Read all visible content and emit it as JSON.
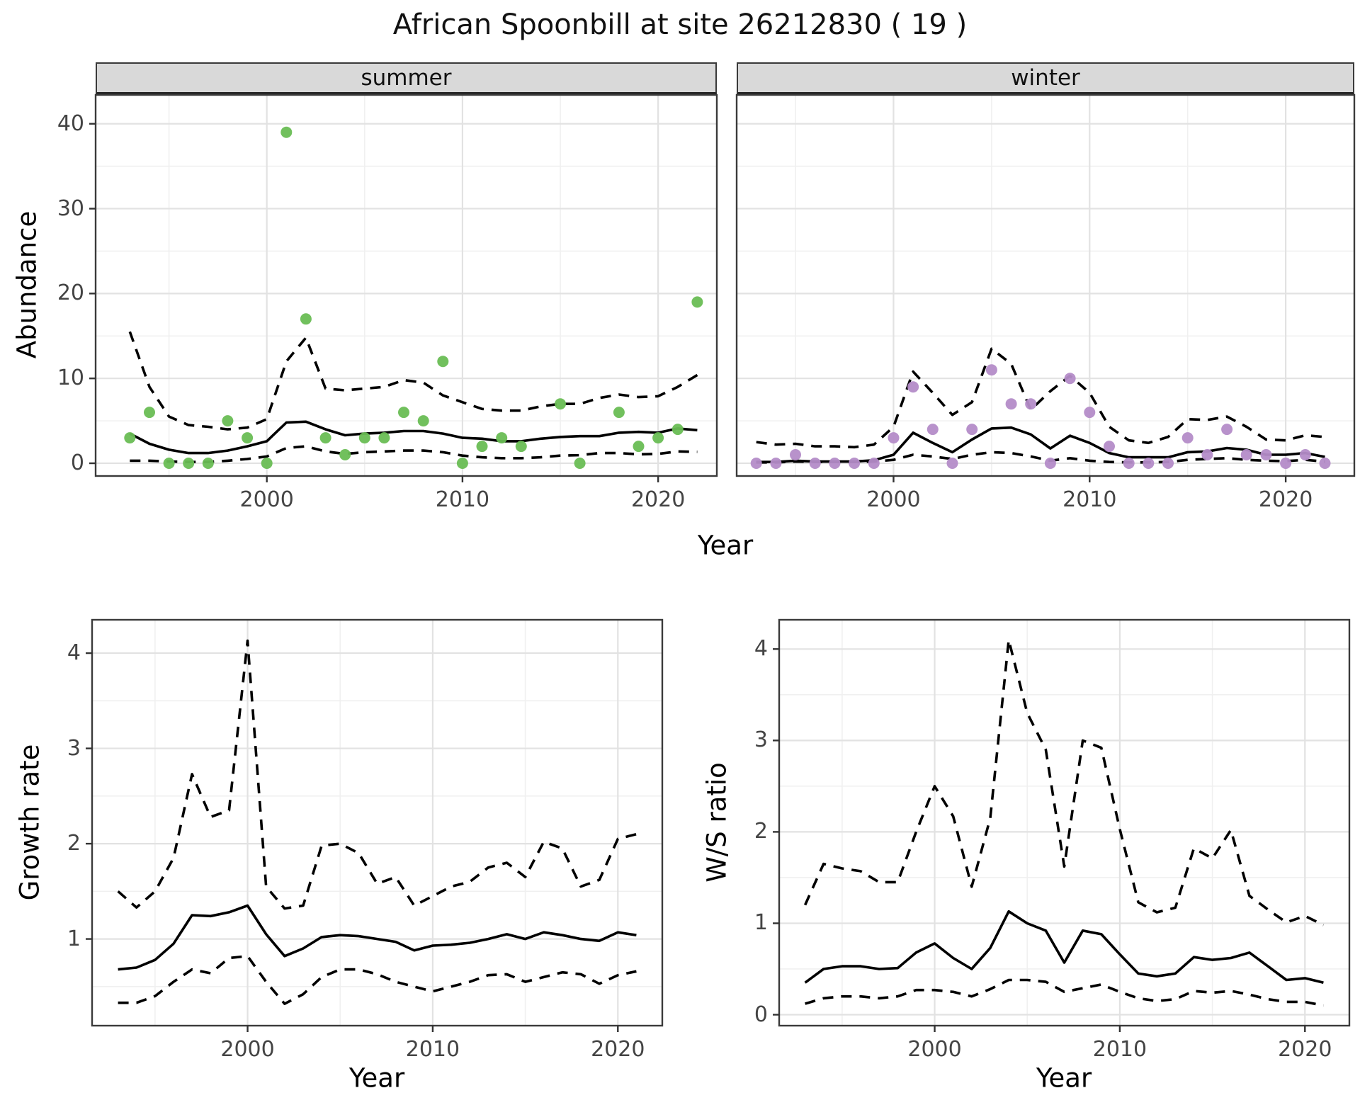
{
  "title": "African Spoonbill at site 26212830 ( 19 )",
  "colors": {
    "summer_point": "#69bd54",
    "winter_point": "#b48cc8",
    "fit_line": "#000000",
    "grid_major": "#e2e2e2",
    "grid_minor": "#f0f0f0",
    "panel_border": "#3a3a3a",
    "strip_bg": "#d9d9d9",
    "tick_text": "#444444"
  },
  "chart_data": {
    "type": "line",
    "title": "African Spoonbill at site 26212830 ( 19 )",
    "top": {
      "ylabel": "Abundance",
      "xlabel": "Year",
      "x_ticks": [
        2000,
        2010,
        2020
      ],
      "x_minor": [
        1995,
        2005,
        2015
      ],
      "y_ticks": [
        0,
        10,
        20,
        30,
        40
      ],
      "y_minor": [
        5,
        15,
        25,
        35
      ],
      "xlim_summer": [
        1991.25,
        2023.0
      ],
      "xlim_winter": [
        1992.0,
        2023.5
      ],
      "ylim": [
        -1.5,
        43.4
      ],
      "legend": "none",
      "grid": true,
      "facets": [
        {
          "label": "summer",
          "points_x": [
            1993,
            1994,
            1995,
            1996,
            1997,
            1998,
            1999,
            2000,
            2001,
            2002,
            2003,
            2004,
            2005,
            2006,
            2007,
            2008,
            2009,
            2010,
            2011,
            2012,
            2013,
            2015,
            2016,
            2018,
            2019,
            2020,
            2021,
            2022
          ],
          "points_y": [
            3,
            6,
            0,
            0,
            0,
            5,
            3,
            0,
            39,
            17,
            3,
            1,
            3,
            3,
            6,
            5,
            12,
            0,
            2,
            3,
            2,
            7,
            0,
            6,
            2,
            3,
            4,
            19
          ],
          "fit_x": [
            1993,
            1994,
            1995,
            1996,
            1997,
            1998,
            1999,
            2000,
            2001,
            2002,
            2003,
            2004,
            2005,
            2006,
            2007,
            2008,
            2009,
            2010,
            2011,
            2012,
            2013,
            2014,
            2015,
            2016,
            2017,
            2018,
            2019,
            2020,
            2021,
            2022
          ],
          "fit_median": [
            3.5,
            2.3,
            1.6,
            1.2,
            1.2,
            1.5,
            2.0,
            2.6,
            4.8,
            4.9,
            4.0,
            3.3,
            3.5,
            3.6,
            3.8,
            3.8,
            3.5,
            3.0,
            2.9,
            2.6,
            2.6,
            2.9,
            3.1,
            3.2,
            3.2,
            3.6,
            3.7,
            3.6,
            4.1,
            3.9
          ],
          "fit_lower": [
            0.3,
            0.3,
            0.2,
            0.15,
            0.15,
            0.3,
            0.5,
            0.8,
            1.8,
            2.0,
            1.4,
            1.1,
            1.3,
            1.4,
            1.5,
            1.5,
            1.3,
            0.9,
            0.7,
            0.6,
            0.6,
            0.7,
            0.9,
            0.95,
            1.2,
            1.2,
            1.05,
            1.1,
            1.4,
            1.35
          ],
          "fit_upper": [
            15.5,
            9.0,
            5.5,
            4.5,
            4.3,
            4.0,
            4.2,
            5.2,
            12.0,
            14.8,
            8.8,
            8.6,
            8.8,
            9.0,
            9.8,
            9.5,
            8.0,
            7.2,
            6.4,
            6.2,
            6.2,
            6.7,
            7.0,
            7.0,
            7.7,
            8.1,
            7.8,
            7.9,
            9.0,
            10.4
          ]
        },
        {
          "label": "winter",
          "points_x": [
            1993,
            1994,
            1995,
            1996,
            1997,
            1998,
            1999,
            2000,
            2001,
            2002,
            2003,
            2004,
            2005,
            2006,
            2007,
            2008,
            2009,
            2010,
            2011,
            2012,
            2013,
            2014,
            2015,
            2016,
            2017,
            2018,
            2019,
            2020,
            2021,
            2022
          ],
          "points_y": [
            0,
            0,
            1,
            0,
            0,
            0,
            0,
            3,
            9,
            4,
            0,
            4,
            11,
            7,
            7,
            0,
            10,
            6,
            2,
            0,
            0,
            0,
            3,
            1,
            4,
            1,
            1,
            0,
            1,
            0
          ],
          "fit_x": [
            1993,
            1994,
            1995,
            1996,
            1997,
            1998,
            1999,
            2000,
            2001,
            2002,
            2003,
            2004,
            2005,
            2006,
            2007,
            2008,
            2009,
            2010,
            2011,
            2012,
            2013,
            2014,
            2015,
            2016,
            2017,
            2018,
            2019,
            2020,
            2021,
            2022
          ],
          "fit_median": [
            0.15,
            0.15,
            0.3,
            0.2,
            0.2,
            0.2,
            0.35,
            1.0,
            3.6,
            2.4,
            1.3,
            2.8,
            4.1,
            4.2,
            3.4,
            1.75,
            3.25,
            2.4,
            1.2,
            0.7,
            0.7,
            0.7,
            1.3,
            1.4,
            1.8,
            1.6,
            1.0,
            1.0,
            1.2,
            0.75
          ],
          "fit_lower": [
            0.1,
            0.1,
            0.2,
            0.15,
            0.15,
            0.15,
            0.2,
            0.4,
            1.0,
            0.8,
            0.5,
            1.0,
            1.3,
            1.2,
            0.8,
            0.3,
            0.6,
            0.3,
            0.15,
            0.1,
            0.1,
            0.15,
            0.4,
            0.5,
            0.6,
            0.4,
            0.3,
            0.25,
            0.4,
            0.2
          ],
          "fit_upper": [
            2.5,
            2.2,
            2.3,
            2.0,
            2.0,
            1.9,
            2.2,
            4.3,
            10.8,
            8.3,
            5.7,
            7.2,
            13.5,
            11.7,
            6.3,
            8.5,
            10.3,
            8.3,
            4.3,
            2.7,
            2.4,
            3.1,
            5.2,
            5.1,
            5.5,
            4.3,
            2.8,
            2.7,
            3.3,
            3.1
          ]
        }
      ]
    },
    "growth_rate": {
      "ylabel": "Growth rate",
      "xlabel": "Year",
      "x_ticks": [
        2000,
        2010,
        2020
      ],
      "x_minor": [
        1995,
        2005,
        2015
      ],
      "y_ticks": [
        1,
        2,
        3,
        4
      ],
      "y_minor": [
        0.5,
        1.5,
        2.5,
        3.5
      ],
      "xlim": [
        1991.6,
        2022.4
      ],
      "ylim": [
        0.09,
        4.35
      ],
      "x": [
        1993,
        1994,
        1995,
        1996,
        1997,
        1998,
        1999,
        2000,
        2001,
        2002,
        2003,
        2004,
        2005,
        2006,
        2007,
        2008,
        2009,
        2010,
        2011,
        2012,
        2013,
        2014,
        2015,
        2016,
        2017,
        2018,
        2019,
        2020,
        2021
      ],
      "median": [
        0.68,
        0.7,
        0.78,
        0.95,
        1.25,
        1.24,
        1.28,
        1.35,
        1.05,
        0.82,
        0.9,
        1.02,
        1.04,
        1.03,
        1.0,
        0.97,
        0.88,
        0.93,
        0.94,
        0.96,
        1.0,
        1.05,
        1.0,
        1.07,
        1.04,
        1.0,
        0.98,
        1.07,
        1.04
      ],
      "lower": [
        0.33,
        0.33,
        0.4,
        0.55,
        0.68,
        0.64,
        0.8,
        0.82,
        0.55,
        0.32,
        0.42,
        0.6,
        0.68,
        0.68,
        0.63,
        0.55,
        0.5,
        0.45,
        0.5,
        0.55,
        0.62,
        0.63,
        0.55,
        0.6,
        0.65,
        0.63,
        0.53,
        0.62,
        0.66
      ],
      "upper": [
        1.5,
        1.33,
        1.5,
        1.85,
        2.73,
        2.28,
        2.35,
        4.13,
        1.55,
        1.32,
        1.35,
        1.98,
        2.0,
        1.9,
        1.58,
        1.65,
        1.35,
        1.45,
        1.55,
        1.6,
        1.75,
        1.8,
        1.65,
        2.02,
        1.95,
        1.55,
        1.62,
        2.05,
        2.1
      ]
    },
    "ws_ratio": {
      "ylabel": "W/S ratio",
      "xlabel": "Year",
      "x_ticks": [
        2000,
        2010,
        2020
      ],
      "x_minor": [
        1995,
        2005,
        2015
      ],
      "y_ticks": [
        0,
        1,
        2,
        3,
        4
      ],
      "y_minor": [
        0.5,
        1.5,
        2.5,
        3.5
      ],
      "xlim": [
        1991.6,
        2022.4
      ],
      "ylim": [
        -0.12,
        4.32
      ],
      "x": [
        1993,
        1994,
        1995,
        1996,
        1997,
        1998,
        1999,
        2000,
        2001,
        2002,
        2003,
        2004,
        2005,
        2006,
        2007,
        2008,
        2009,
        2010,
        2011,
        2012,
        2013,
        2014,
        2015,
        2016,
        2017,
        2018,
        2019,
        2020,
        2021
      ],
      "median": [
        0.35,
        0.5,
        0.53,
        0.53,
        0.5,
        0.51,
        0.68,
        0.78,
        0.62,
        0.5,
        0.73,
        1.13,
        1.0,
        0.92,
        0.57,
        0.92,
        0.88,
        0.66,
        0.45,
        0.42,
        0.45,
        0.63,
        0.6,
        0.62,
        0.68,
        0.53,
        0.38,
        0.4,
        0.35
      ],
      "lower": [
        0.12,
        0.18,
        0.2,
        0.2,
        0.18,
        0.2,
        0.27,
        0.27,
        0.25,
        0.2,
        0.28,
        0.38,
        0.38,
        0.36,
        0.25,
        0.29,
        0.33,
        0.25,
        0.18,
        0.15,
        0.17,
        0.26,
        0.24,
        0.26,
        0.22,
        0.17,
        0.14,
        0.14,
        0.1
      ],
      "upper": [
        1.2,
        1.65,
        1.6,
        1.57,
        1.45,
        1.45,
        2.0,
        2.5,
        2.17,
        1.4,
        2.15,
        4.1,
        3.3,
        2.9,
        1.62,
        3.0,
        2.92,
        2.03,
        1.23,
        1.12,
        1.17,
        1.82,
        1.71,
        2.02,
        1.3,
        1.15,
        1.01,
        1.08,
        0.98
      ]
    }
  }
}
